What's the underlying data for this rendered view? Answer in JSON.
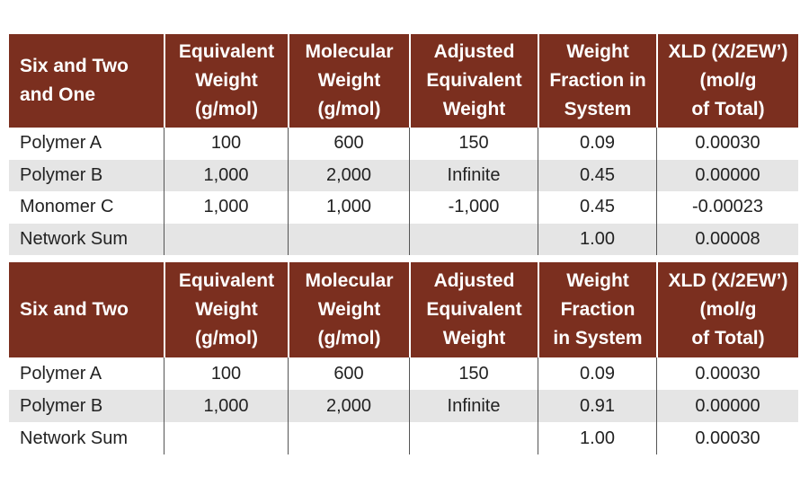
{
  "tables": [
    {
      "header": [
        [
          "Six and Two",
          "and One"
        ],
        [
          "Equivalent",
          "Weight",
          "(g/mol)"
        ],
        [
          "Molecular",
          "Weight",
          "(g/mol)"
        ],
        [
          "Adjusted",
          "Equivalent",
          "Weight"
        ],
        [
          "Weight",
          "Fraction in",
          "System"
        ],
        [
          "XLD (X/2EW’)",
          "(mol/g",
          "of Total)"
        ]
      ],
      "rows": [
        [
          "Polymer A",
          "100",
          "600",
          "150",
          "0.09",
          "0.00030"
        ],
        [
          "Polymer B",
          "1,000",
          "2,000",
          "Infinite",
          "0.45",
          "0.00000"
        ],
        [
          "Monomer C",
          "1,000",
          "1,000",
          "-1,000",
          "0.45",
          "-0.00023"
        ],
        [
          "Network Sum",
          null,
          null,
          null,
          "1.00",
          "0.00008"
        ]
      ]
    },
    {
      "header": [
        [
          "Six and Two"
        ],
        [
          "Equivalent",
          "Weight",
          "(g/mol)"
        ],
        [
          "Molecular",
          "Weight",
          "(g/mol)"
        ],
        [
          "Adjusted",
          "Equivalent",
          "Weight"
        ],
        [
          "Weight",
          "Fraction",
          "in System"
        ],
        [
          "XLD (X/2EW’)",
          "(mol/g",
          "of Total)"
        ]
      ],
      "rows": [
        [
          "Polymer A",
          "100",
          "600",
          "150",
          "0.09",
          "0.00030"
        ],
        [
          "Polymer B",
          "1,000",
          "2,000",
          "Infinite",
          "0.91",
          "0.00000"
        ],
        [
          "Network Sum",
          null,
          null,
          null,
          "1.00",
          "0.00030"
        ]
      ]
    }
  ]
}
